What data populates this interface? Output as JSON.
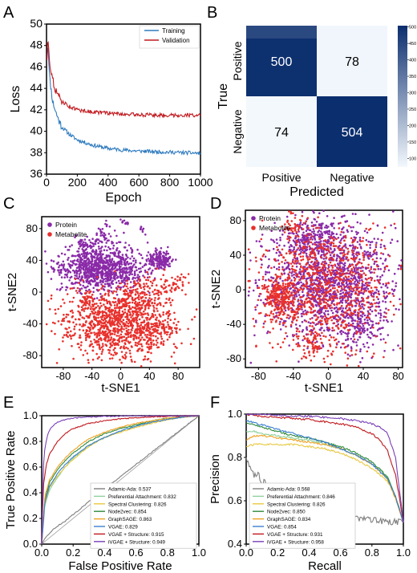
{
  "colors": {
    "training": "#2f7bbf",
    "validation": "#c0181d",
    "protein": "#8a2aa8",
    "metabolite": "#e8302c",
    "heat_dark": "#0b2e6e",
    "heat_light": "#f3f8fd"
  },
  "chart_data": [
    {
      "panel": "A",
      "type": "line",
      "xlabel": "Epoch",
      "ylabel": "Loss",
      "xlim": [
        0,
        1000
      ],
      "ylim": [
        36,
        50
      ],
      "xticks": [
        "0",
        "200",
        "400",
        "600",
        "800",
        "1000"
      ],
      "yticks": [
        "36",
        "38",
        "40",
        "42",
        "44",
        "46",
        "48",
        "50"
      ],
      "legend": "top-right",
      "series": [
        {
          "name": "Training",
          "x": [
            0,
            10,
            20,
            40,
            60,
            80,
            100,
            150,
            200,
            300,
            400,
            500,
            600,
            700,
            800,
            900,
            1000
          ],
          "values": [
            46.5,
            48.2,
            45.0,
            42.8,
            41.8,
            41.0,
            40.4,
            39.7,
            39.2,
            38.7,
            38.4,
            38.25,
            38.15,
            38.1,
            38.05,
            38.0,
            37.95
          ]
        },
        {
          "name": "Validation",
          "x": [
            0,
            10,
            20,
            40,
            60,
            80,
            100,
            150,
            200,
            300,
            400,
            500,
            600,
            700,
            800,
            900,
            1000
          ],
          "values": [
            46.0,
            48.8,
            46.5,
            44.8,
            43.8,
            43.2,
            42.8,
            42.3,
            42.0,
            41.8,
            41.7,
            41.6,
            41.55,
            41.5,
            41.5,
            41.5,
            41.5
          ]
        }
      ]
    },
    {
      "panel": "B",
      "type": "heatmap",
      "xlabel": "Predicted",
      "ylabel": "True",
      "col_labels": [
        "Positive",
        "Negative"
      ],
      "row_labels": [
        "Positive",
        "Negative"
      ],
      "values": [
        [
          500,
          78
        ],
        [
          74,
          504
        ]
      ],
      "colorbar_ticks": [
        "500",
        "450",
        "400",
        "350",
        "300",
        "250",
        "200",
        "150",
        "100"
      ],
      "colorbar_range": [
        74,
        504
      ]
    },
    {
      "panel": "C",
      "type": "scatter",
      "xlabel": "t-SNE1",
      "ylabel": "t-SNE2",
      "xlim": [
        -110,
        110
      ],
      "ylim": [
        -95,
        95
      ],
      "xticks": [
        "-80",
        "-40",
        "0",
        "40",
        "80"
      ],
      "yticks": [
        "80",
        "40",
        "0",
        "-40",
        "-80"
      ],
      "legend": "top-left",
      "series": [
        {
          "name": "Protein",
          "clusters": [
            [
              -25,
              30,
              28,
              14,
              900
            ],
            [
              55,
              40,
              8,
              6,
              180
            ],
            [
              -45,
              55,
              10,
              8,
              60
            ],
            [
              -85,
              30,
              5,
              5,
              25
            ],
            [
              -20,
              70,
              8,
              8,
              40
            ],
            [
              5,
              88,
              4,
              4,
              12
            ],
            [
              30,
              80,
              3,
              3,
              8
            ]
          ]
        },
        {
          "name": "Metabolite",
          "clusters": [
            [
              -5,
              -40,
              35,
              22,
              1000
            ],
            [
              30,
              -5,
              20,
              12,
              150
            ],
            [
              75,
              10,
              10,
              6,
              40
            ],
            [
              45,
              -50,
              18,
              12,
              120
            ],
            [
              -50,
              -10,
              8,
              6,
              30
            ]
          ]
        }
      ]
    },
    {
      "panel": "D",
      "type": "scatter",
      "xlabel": "t-SNE1",
      "ylabel": "t-SNE2",
      "xlim": [
        -95,
        85
      ],
      "ylim": [
        -90,
        92
      ],
      "xticks": [
        "-80",
        "-40",
        "0",
        "40",
        "80"
      ],
      "yticks": [
        "80",
        "40",
        "0",
        "-40",
        "-80"
      ],
      "legend": "top-left",
      "series": [
        {
          "name": "Protein",
          "clusters": [
            [
              0,
              10,
              38,
              34,
              1400
            ],
            [
              -20,
              60,
              15,
              12,
              200
            ],
            [
              40,
              -40,
              14,
              14,
              150
            ]
          ]
        },
        {
          "name": "Metabolite",
          "clusters": [
            [
              -55,
              -10,
              9,
              12,
              220
            ],
            [
              -5,
              5,
              38,
              36,
              900
            ],
            [
              -20,
              -65,
              8,
              8,
              60
            ],
            [
              -40,
              75,
              6,
              6,
              30
            ]
          ]
        }
      ]
    },
    {
      "panel": "E",
      "type": "line",
      "xlabel": "False Positive Rate",
      "ylabel": "True Positive Rate",
      "xlim": [
        0,
        1
      ],
      "ylim": [
        0,
        1
      ],
      "xticks": [
        "0.0",
        "0.2",
        "0.4",
        "0.6",
        "0.8",
        "1.0"
      ],
      "yticks": [
        "0.0",
        "0.2",
        "0.4",
        "0.6",
        "0.8",
        "1.0"
      ],
      "legend": "bottom-right",
      "series": [
        {
          "name": "Adamic-Ada: 0.537",
          "color": "#7f7f7f",
          "x": [
            0,
            0.02,
            0.04,
            0.06,
            0.08,
            0.1,
            0.15,
            0.25,
            0.4,
            0.6,
            0.8,
            1
          ],
          "values": [
            0,
            0.04,
            0.07,
            0.1,
            0.12,
            0.14,
            0.18,
            0.28,
            0.43,
            0.62,
            0.81,
            1
          ]
        },
        {
          "name": "Preferential Attachment: 0.832",
          "color": "#8fd19e",
          "x": [
            0,
            0.02,
            0.05,
            0.1,
            0.15,
            0.2,
            0.3,
            0.4,
            0.5,
            0.6,
            0.7,
            0.8,
            0.9,
            1
          ],
          "values": [
            0,
            0.3,
            0.42,
            0.52,
            0.6,
            0.67,
            0.77,
            0.83,
            0.88,
            0.92,
            0.95,
            0.97,
            0.99,
            1
          ]
        },
        {
          "name": "Spectral Clustering: 0.826",
          "color": "#e8c840",
          "x": [
            0,
            0.02,
            0.05,
            0.1,
            0.15,
            0.2,
            0.3,
            0.4,
            0.5,
            0.6,
            0.7,
            0.8,
            0.9,
            1
          ],
          "values": [
            0,
            0.32,
            0.44,
            0.53,
            0.6,
            0.66,
            0.76,
            0.83,
            0.87,
            0.91,
            0.94,
            0.97,
            0.99,
            1
          ]
        },
        {
          "name": "Node2vec: 0.854",
          "color": "#2f8a3c",
          "x": [
            0,
            0.02,
            0.05,
            0.1,
            0.15,
            0.2,
            0.3,
            0.4,
            0.5,
            0.6,
            0.7,
            0.8,
            0.9,
            1
          ],
          "values": [
            0,
            0.35,
            0.48,
            0.58,
            0.65,
            0.71,
            0.8,
            0.86,
            0.9,
            0.93,
            0.96,
            0.98,
            0.99,
            1
          ]
        },
        {
          "name": "GraphSAGE: 0.863",
          "color": "#f0a020",
          "x": [
            0,
            0.02,
            0.05,
            0.1,
            0.15,
            0.2,
            0.3,
            0.4,
            0.5,
            0.6,
            0.7,
            0.8,
            0.9,
            1
          ],
          "values": [
            0,
            0.37,
            0.5,
            0.6,
            0.67,
            0.73,
            0.82,
            0.87,
            0.91,
            0.94,
            0.96,
            0.98,
            0.99,
            1
          ]
        },
        {
          "name": "VGAE: 0.829",
          "color": "#3a7fd0",
          "x": [
            0,
            0.02,
            0.05,
            0.1,
            0.15,
            0.2,
            0.3,
            0.4,
            0.5,
            0.6,
            0.7,
            0.8,
            0.9,
            1
          ],
          "values": [
            0,
            0.33,
            0.45,
            0.55,
            0.62,
            0.68,
            0.77,
            0.83,
            0.88,
            0.92,
            0.95,
            0.97,
            0.99,
            1
          ]
        },
        {
          "name": "VGAE + Structure: 0.915",
          "color": "#c0181d",
          "x": [
            0,
            0.01,
            0.03,
            0.05,
            0.1,
            0.15,
            0.2,
            0.3,
            0.4,
            0.5,
            0.6,
            0.8,
            1
          ],
          "values": [
            0,
            0.45,
            0.62,
            0.7,
            0.8,
            0.86,
            0.9,
            0.94,
            0.96,
            0.975,
            0.985,
            0.995,
            1
          ]
        },
        {
          "name": "iVGAE + Structure: 0.949",
          "color": "#7a3fb8",
          "x": [
            0,
            0.01,
            0.02,
            0.04,
            0.06,
            0.1,
            0.15,
            0.2,
            0.3,
            0.4,
            0.6,
            0.8,
            1
          ],
          "values": [
            0,
            0.6,
            0.75,
            0.86,
            0.91,
            0.95,
            0.97,
            0.98,
            0.99,
            0.995,
            1,
            1,
            1
          ]
        }
      ]
    },
    {
      "panel": "F",
      "type": "line",
      "xlabel": "Recall",
      "ylabel": "Precision",
      "xlim": [
        0,
        1
      ],
      "ylim": [
        0.4,
        1
      ],
      "xticks": [
        "0.0",
        "0.2",
        "0.4",
        "0.6",
        "0.8",
        "1.0"
      ],
      "yticks": [
        "0.4",
        "0.6",
        "0.8",
        "1.0"
      ],
      "legend": "bottom-left",
      "series": [
        {
          "name": "Adamic-Ada: 0.568",
          "color": "#7f7f7f",
          "x": [
            0,
            0.02,
            0.05,
            0.08,
            0.1,
            0.12,
            0.15,
            0.2,
            0.25,
            0.3,
            0.35,
            0.4,
            0.6,
            0.8,
            1
          ],
          "values": [
            0.8,
            0.75,
            0.72,
            0.73,
            0.66,
            0.7,
            0.64,
            0.63,
            0.6,
            0.62,
            0.55,
            0.54,
            0.53,
            0.51,
            0.5
          ]
        },
        {
          "name": "Preferential Attachment: 0.846",
          "color": "#8fd19e",
          "x": [
            0,
            0.05,
            0.1,
            0.2,
            0.3,
            0.4,
            0.5,
            0.6,
            0.7,
            0.8,
            0.9,
            0.95,
            1
          ],
          "values": [
            0.92,
            0.92,
            0.91,
            0.9,
            0.89,
            0.88,
            0.86,
            0.84,
            0.81,
            0.77,
            0.71,
            0.62,
            0.5
          ]
        },
        {
          "name": "Spectral Clustering: 0.826",
          "color": "#e8c840",
          "x": [
            0,
            0.05,
            0.1,
            0.2,
            0.3,
            0.4,
            0.5,
            0.6,
            0.7,
            0.8,
            0.9,
            0.95,
            1
          ],
          "values": [
            0.85,
            0.86,
            0.86,
            0.86,
            0.86,
            0.85,
            0.84,
            0.82,
            0.79,
            0.75,
            0.69,
            0.62,
            0.5
          ]
        },
        {
          "name": "Node2vec: 0.850",
          "color": "#2f8a3c",
          "x": [
            0,
            0.05,
            0.1,
            0.2,
            0.3,
            0.4,
            0.5,
            0.6,
            0.7,
            0.8,
            0.9,
            0.95,
            1
          ],
          "values": [
            0.96,
            0.95,
            0.94,
            0.92,
            0.9,
            0.89,
            0.87,
            0.85,
            0.82,
            0.78,
            0.71,
            0.62,
            0.5
          ]
        },
        {
          "name": "GraphSAGE: 0.834",
          "color": "#f0a020",
          "x": [
            0,
            0.05,
            0.1,
            0.2,
            0.3,
            0.4,
            0.5,
            0.6,
            0.7,
            0.8,
            0.9,
            0.95,
            1
          ],
          "values": [
            0.88,
            0.9,
            0.9,
            0.89,
            0.88,
            0.87,
            0.86,
            0.84,
            0.81,
            0.77,
            0.7,
            0.61,
            0.5
          ]
        },
        {
          "name": "VGAE: 0.854",
          "color": "#3a7fd0",
          "x": [
            0,
            0.05,
            0.1,
            0.2,
            0.3,
            0.4,
            0.5,
            0.6,
            0.7,
            0.8,
            0.9,
            0.95,
            1
          ],
          "values": [
            0.97,
            0.96,
            0.95,
            0.93,
            0.91,
            0.89,
            0.87,
            0.84,
            0.81,
            0.77,
            0.7,
            0.62,
            0.5
          ]
        },
        {
          "name": "VGAE + Structure: 0.931",
          "color": "#c0181d",
          "x": [
            0,
            0.05,
            0.1,
            0.2,
            0.3,
            0.4,
            0.5,
            0.6,
            0.7,
            0.8,
            0.85,
            0.9,
            0.95,
            1
          ],
          "values": [
            1.0,
            0.995,
            0.99,
            0.985,
            0.98,
            0.975,
            0.965,
            0.955,
            0.94,
            0.91,
            0.88,
            0.83,
            0.72,
            0.5
          ]
        },
        {
          "name": "iVGAE + Structure: 0.958",
          "color": "#7a3fb8",
          "x": [
            0,
            0.05,
            0.1,
            0.2,
            0.3,
            0.4,
            0.5,
            0.6,
            0.7,
            0.8,
            0.85,
            0.9,
            0.95,
            1
          ],
          "values": [
            1.0,
            1.0,
            1.0,
            0.995,
            0.99,
            0.99,
            0.985,
            0.98,
            0.97,
            0.955,
            0.94,
            0.91,
            0.8,
            0.5
          ]
        }
      ]
    }
  ]
}
